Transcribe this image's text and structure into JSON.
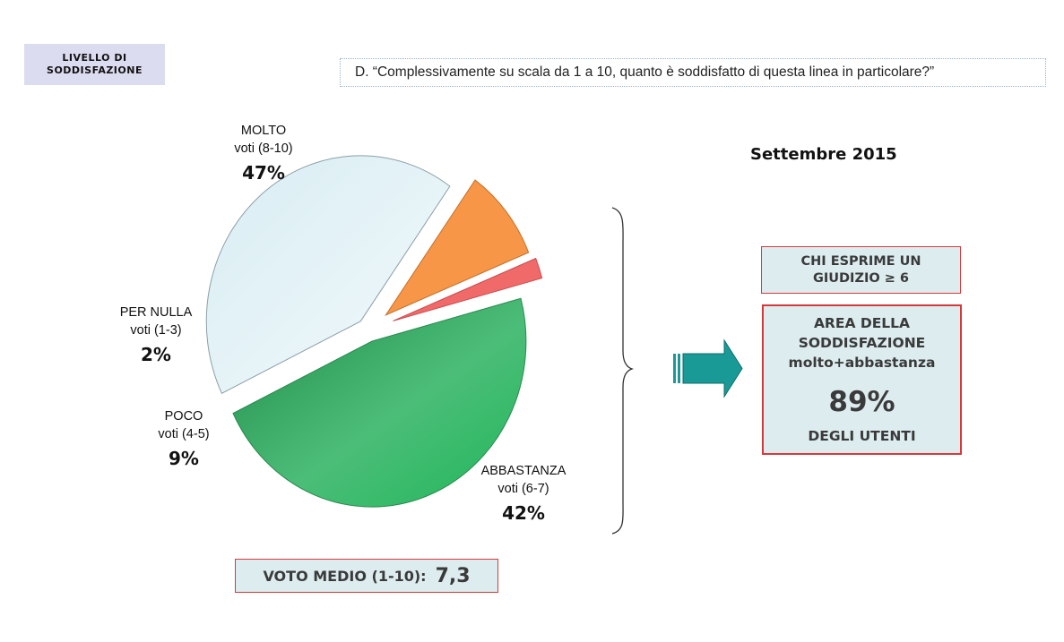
{
  "header": {
    "level_badge": [
      "LIVELLO DI",
      "SODDISFAZIONE"
    ],
    "question": "D. “Complessivamente su scala da 1 a 10, quanto è soddisfatto di questa linea in particolare?”"
  },
  "period": "Settembre 2015",
  "chart_data": {
    "type": "pie",
    "title": "",
    "slices": [
      {
        "name": "MOLTO",
        "sub": "voti (8-10)",
        "value": 47,
        "label": "47%",
        "color": "#2fb461"
      },
      {
        "name": "ABBASTANZA",
        "sub": "voti (6-7)",
        "value": 42,
        "label": "42%",
        "color": "#e4f2f6"
      },
      {
        "name": "POCO",
        "sub": "voti (4-5)",
        "value": 9,
        "label": "9%",
        "color": "#f79646"
      },
      {
        "name": "PER NULLA",
        "sub": "voti (1-3)",
        "value": 2,
        "label": "2%",
        "color": "#f06a6a"
      }
    ]
  },
  "summary": {
    "chi_line1": "CHI ESPRIME UN",
    "chi_line2": "GIUDIZIO ≥ 6",
    "area_line1": "AREA DELLA",
    "area_line2": "SODDISFAZIONE",
    "area_line3": "molto+abbastanza",
    "area_value": "89%",
    "area_sub": "DEGLI UTENTI"
  },
  "average": {
    "label": "VOTO MEDIO (1-10):",
    "value": "7,3"
  },
  "colors": {
    "accent_border": "#d7393a",
    "box_fill": "#dcecef",
    "arrow": "#1a9a96"
  }
}
